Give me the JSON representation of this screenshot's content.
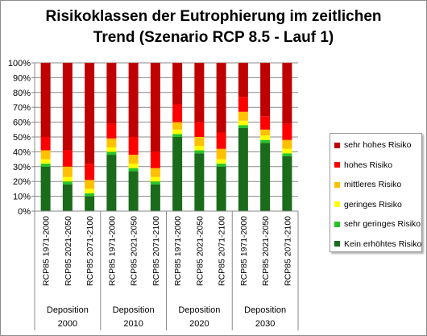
{
  "chart_data": {
    "type": "bar",
    "stacked": true,
    "title": "Risikoklassen  der Eutrophierung  im zeitlichen\nTrend  (Szenario  RCP 8.5 - Lauf 1)",
    "categories": [
      "RCP85 1971-2000",
      "RCP85 2021-2050",
      "RCP85 2071-2100",
      "RCP85 1971-2000",
      "RCP85 2021-2050",
      "RCP85 2071-2100",
      "RCP85 1971-2000",
      "RCP85 2021-2050",
      "RCP85 2071-2100",
      "RCP85 1971-2000",
      "RCP85 2021-2050",
      "RCP85 2071-2100"
    ],
    "groups": [
      {
        "line1": "Deposition",
        "line2": "2000"
      },
      {
        "line1": "Deposition",
        "line2": "2010"
      },
      {
        "line1": "Deposition",
        "line2": "2020"
      },
      {
        "line1": "Deposition",
        "line2": "2030"
      }
    ],
    "yticks": [
      "0%",
      "10%",
      "20%",
      "30%",
      "40%",
      "50%",
      "60%",
      "70%",
      "80%",
      "90%",
      "100%"
    ],
    "ylim": [
      0,
      100
    ],
    "grid": true,
    "legend_position": "right",
    "series": [
      {
        "name": "Kein erhöhtes Risiko",
        "color": "#1a6b1a",
        "values": [
          30,
          18,
          10,
          38,
          27,
          18,
          50,
          39,
          30,
          56,
          46,
          37
        ]
      },
      {
        "name": "sehr geringes Risiko",
        "color": "#27c427",
        "values": [
          2,
          2,
          2,
          2,
          2,
          2,
          2,
          2,
          2,
          2,
          2,
          2
        ]
      },
      {
        "name": "geringes Risiko",
        "color": "#ffff00",
        "values": [
          3,
          3,
          3,
          3,
          3,
          3,
          3,
          3,
          3,
          3,
          3,
          3
        ]
      },
      {
        "name": "mittleres Risiko",
        "color": "#ffc000",
        "values": [
          6,
          7,
          6,
          6,
          6,
          6,
          5,
          6,
          7,
          6,
          4,
          6
        ]
      },
      {
        "name": "hohes Risiko",
        "color": "#ff0000",
        "values": [
          9,
          11,
          11,
          10,
          12,
          11,
          12,
          10,
          11,
          10,
          9,
          11
        ]
      },
      {
        "name": "sehr hohes Risiko",
        "color": "#c00000",
        "values": [
          50,
          59,
          68,
          41,
          50,
          60,
          28,
          40,
          47,
          23,
          36,
          41
        ]
      }
    ]
  }
}
